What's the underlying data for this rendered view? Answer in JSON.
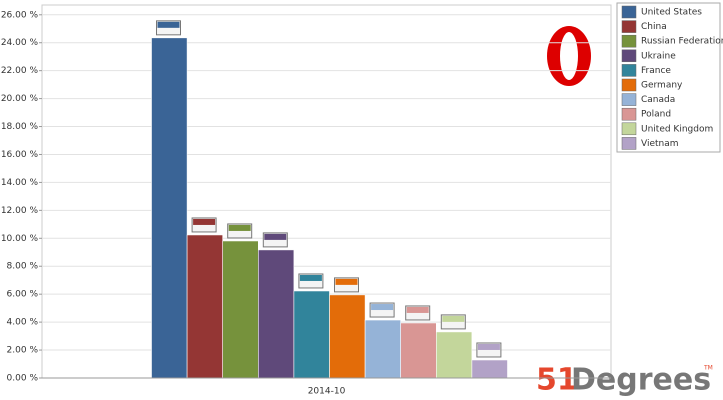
{
  "chart_data": {
    "type": "bar",
    "categories": [
      "2014-10"
    ],
    "series": [
      {
        "name": "United States",
        "color": "#3a6496",
        "values": [
          24.35
        ]
      },
      {
        "name": "China",
        "color": "#943634",
        "values": [
          10.24
        ]
      },
      {
        "name": "Russian Federation",
        "color": "#76923c",
        "values": [
          9.81
        ]
      },
      {
        "name": "Ukraine",
        "color": "#5f497a",
        "values": [
          9.17
        ]
      },
      {
        "name": "France",
        "color": "#31849b",
        "values": [
          6.23
        ]
      },
      {
        "name": "Germany",
        "color": "#e36c09",
        "values": [
          5.95
        ]
      },
      {
        "name": "Canada",
        "color": "#95b3d7",
        "values": [
          4.15
        ]
      },
      {
        "name": "Poland",
        "color": "#d99694",
        "values": [
          3.94
        ]
      },
      {
        "name": "United Kingdom",
        "color": "#c3d69b",
        "values": [
          3.3
        ]
      },
      {
        "name": "Vietnam",
        "color": "#b2a2c7",
        "values": [
          1.29
        ]
      }
    ],
    "ylim": [
      0,
      26.7
    ],
    "yticks": [
      {
        "value": 0,
        "label": "0.00 %"
      },
      {
        "value": 2,
        "label": "2.00 %"
      },
      {
        "value": 4,
        "label": "4.00 %"
      },
      {
        "value": 6,
        "label": "6.00 %"
      },
      {
        "value": 8,
        "label": "8.00 %"
      },
      {
        "value": 10,
        "label": "10.00 %"
      },
      {
        "value": 12,
        "label": "12.00 %"
      },
      {
        "value": 14,
        "label": "14.00 %"
      },
      {
        "value": 16,
        "label": "16.00 %"
      },
      {
        "value": 18,
        "label": "18.00 %"
      },
      {
        "value": 20,
        "label": "20.00 %"
      },
      {
        "value": 22,
        "label": "22.00 %"
      },
      {
        "value": 24,
        "label": "24.00 %"
      },
      {
        "value": 26,
        "label": "26.00 %"
      }
    ],
    "grid": true,
    "legend": "right",
    "logo": [
      "51",
      "Degrees",
      "TM"
    ]
  }
}
